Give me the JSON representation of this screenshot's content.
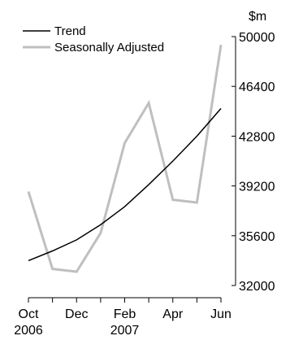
{
  "chart_data": {
    "type": "line",
    "unit": "$m",
    "x": [
      "Oct 2006",
      "Nov 2006",
      "Dec 2006",
      "Jan 2007",
      "Feb 2007",
      "Mar 2007",
      "Apr 2007",
      "May 2007",
      "Jun 2007"
    ],
    "x_ticks": [
      {
        "index": 0,
        "month": "Oct",
        "year": "2006"
      },
      {
        "index": 2,
        "month": "Dec",
        "year": ""
      },
      {
        "index": 4,
        "month": "Feb",
        "year": "2007"
      },
      {
        "index": 6,
        "month": "Apr",
        "year": ""
      },
      {
        "index": 8,
        "month": "Jun",
        "year": ""
      }
    ],
    "y_ticks": [
      32000,
      35600,
      39200,
      42800,
      46400,
      50000
    ],
    "ylim": [
      32000,
      50000
    ],
    "series": [
      {
        "name": "Trend",
        "color": "#000000",
        "values": [
          33800,
          34500,
          35300,
          36400,
          37700,
          39300,
          41000,
          42800,
          44800
        ]
      },
      {
        "name": "Seasonally Adjusted",
        "color": "#bfbfbf",
        "values": [
          38800,
          33200,
          33000,
          35800,
          42300,
          45200,
          38200,
          38000,
          49400
        ]
      }
    ],
    "legend": "top-left",
    "grid": false
  }
}
